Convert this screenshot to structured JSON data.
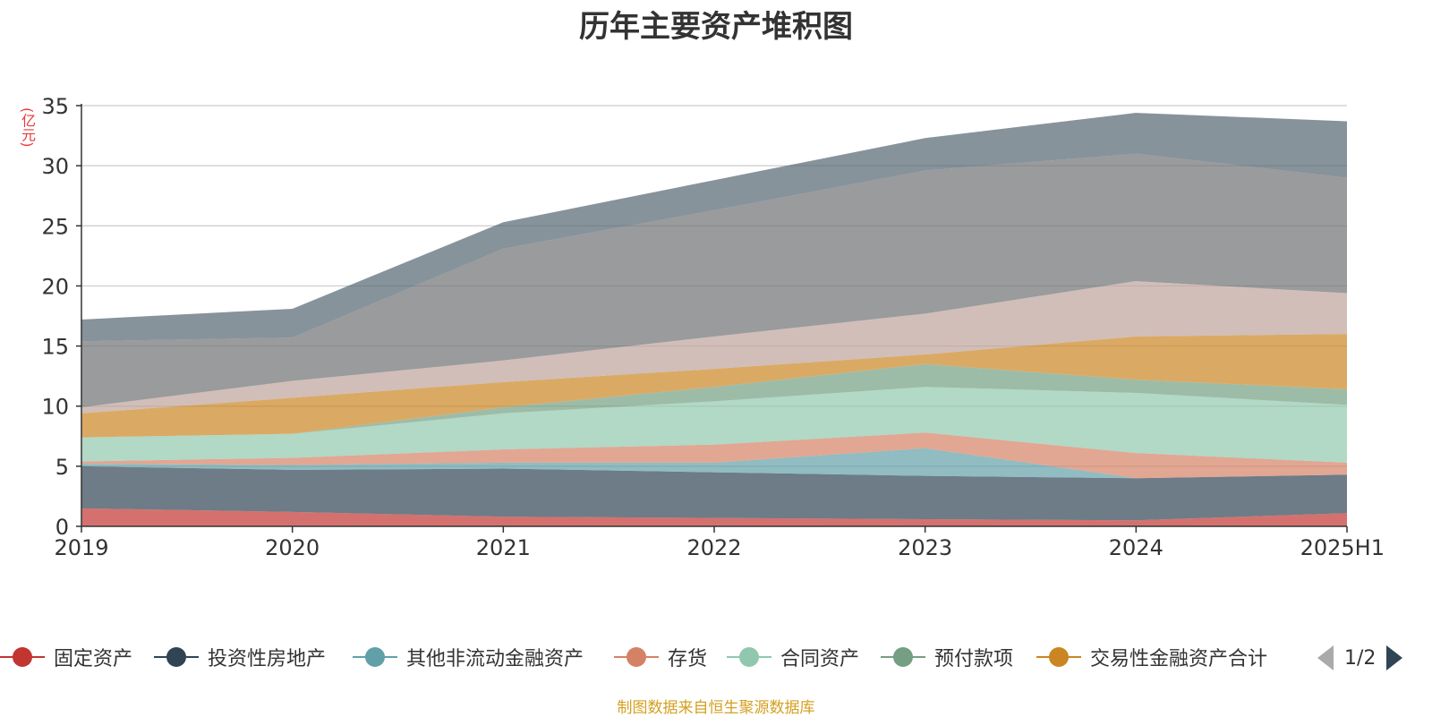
{
  "chart_data": {
    "type": "area",
    "title": "历年主要资产堆积图",
    "ylabel": "(亿元)",
    "xlabel": "",
    "categories": [
      "2019",
      "2020",
      "2021",
      "2022",
      "2023",
      "2024",
      "2025H1"
    ],
    "ylim": [
      0,
      35
    ],
    "yticks": [
      0,
      5,
      10,
      15,
      20,
      25,
      30,
      35
    ],
    "stacked": true,
    "grid": true,
    "legend_position": "bottom",
    "series": [
      {
        "name": "固定资产",
        "color": "#c23531",
        "values": [
          1.5,
          1.2,
          0.8,
          0.7,
          0.6,
          0.5,
          1.1
        ]
      },
      {
        "name": "投资性房地产",
        "color": "#2f4554",
        "values": [
          3.5,
          3.5,
          4.0,
          3.8,
          3.6,
          3.5,
          3.2
        ]
      },
      {
        "name": "其他非流动金融资产",
        "color": "#61a0a8",
        "values": [
          0.2,
          0.4,
          0.5,
          0.8,
          2.3,
          0.0,
          0.0
        ]
      },
      {
        "name": "存货",
        "color": "#d48265",
        "values": [
          0.2,
          0.6,
          1.1,
          1.5,
          1.3,
          2.1,
          1.0
        ]
      },
      {
        "name": "合同资产",
        "color": "#91c7ae",
        "values": [
          2.0,
          2.0,
          3.0,
          3.6,
          3.8,
          5.0,
          4.8
        ]
      },
      {
        "name": "预付款项",
        "color": "#749f83",
        "values": [
          0.0,
          0.0,
          0.5,
          1.2,
          1.9,
          1.1,
          1.3
        ]
      },
      {
        "name": "交易性金融资产合计",
        "color": "#ca8622",
        "values": [
          2.0,
          3.0,
          2.1,
          1.5,
          0.8,
          3.6,
          4.6
        ]
      },
      {
        "name": "",
        "color": "#bda29a",
        "values": [
          0.5,
          1.4,
          1.8,
          2.7,
          3.4,
          4.6,
          3.4
        ]
      },
      {
        "name": "",
        "color": "#6e7074",
        "values": [
          5.5,
          3.6,
          9.3,
          10.5,
          11.9,
          10.6,
          9.6
        ]
      },
      {
        "name": "",
        "color": "#546570",
        "values": [
          1.8,
          2.4,
          2.2,
          2.5,
          2.7,
          3.4,
          4.7
        ]
      }
    ]
  },
  "legend": {
    "page_indicator": "1/2"
  },
  "source_note": "制图数据来自恒生聚源数据库"
}
